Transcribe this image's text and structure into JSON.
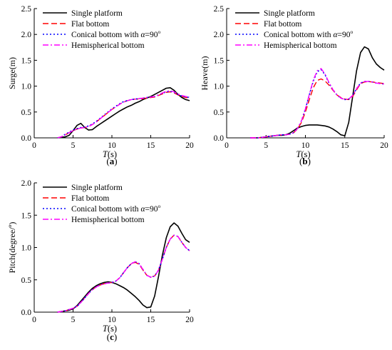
{
  "figure": {
    "legend_labels": [
      "Single platform",
      "Flat bottom",
      "Conical bottom with α=90°",
      "Hemispherical bottom"
    ],
    "series_colors": [
      "#000000",
      "#ff0000",
      "#0000ff",
      "#ff00ff"
    ],
    "series_dashes": [
      "solid",
      "dashed",
      "dotted",
      "dash-dot"
    ]
  },
  "chart_data": [
    {
      "id": "a",
      "type": "line",
      "caption": "(a)",
      "xlabel": "T(s)",
      "ylabel": "Surge(m)",
      "xlim": [
        0,
        20
      ],
      "ylim": [
        0,
        2.5
      ],
      "xticks": [
        0,
        5,
        10,
        15,
        20
      ],
      "yticks": [
        0.0,
        0.5,
        1.0,
        1.5,
        2.0,
        2.5
      ],
      "legend_position": "top-left",
      "x": [
        3,
        3.5,
        4,
        4.5,
        5,
        5.5,
        6,
        6.5,
        7,
        7.5,
        8,
        8.5,
        9,
        9.5,
        10,
        10.5,
        11,
        11.5,
        12,
        12.5,
        13,
        13.5,
        14,
        14.5,
        15,
        15.5,
        16,
        16.5,
        17,
        17.5,
        18,
        18.5,
        19,
        19.5,
        20
      ],
      "series": [
        {
          "name": "Single platform",
          "values": [
            0.0,
            0.01,
            0.02,
            0.05,
            0.14,
            0.24,
            0.28,
            0.2,
            0.15,
            0.16,
            0.22,
            0.27,
            0.32,
            0.37,
            0.42,
            0.47,
            0.52,
            0.56,
            0.6,
            0.63,
            0.67,
            0.7,
            0.74,
            0.77,
            0.8,
            0.84,
            0.88,
            0.92,
            0.96,
            0.97,
            0.92,
            0.84,
            0.78,
            0.74,
            0.72
          ]
        },
        {
          "name": "Flat bottom",
          "values": [
            0.0,
            0.02,
            0.06,
            0.1,
            0.14,
            0.17,
            0.19,
            0.2,
            0.22,
            0.26,
            0.31,
            0.37,
            0.43,
            0.49,
            0.55,
            0.6,
            0.65,
            0.69,
            0.72,
            0.74,
            0.75,
            0.75,
            0.76,
            0.77,
            0.78,
            0.79,
            0.82,
            0.85,
            0.88,
            0.89,
            0.87,
            0.83,
            0.8,
            0.78,
            0.77
          ]
        },
        {
          "name": "Conical bottom with α=90°",
          "values": [
            0.0,
            0.02,
            0.07,
            0.11,
            0.15,
            0.18,
            0.2,
            0.21,
            0.23,
            0.27,
            0.32,
            0.38,
            0.44,
            0.5,
            0.56,
            0.61,
            0.66,
            0.7,
            0.72,
            0.74,
            0.75,
            0.76,
            0.77,
            0.78,
            0.79,
            0.8,
            0.83,
            0.86,
            0.89,
            0.9,
            0.88,
            0.84,
            0.81,
            0.79,
            0.78
          ]
        },
        {
          "name": "Hemispherical bottom",
          "values": [
            0.0,
            0.02,
            0.06,
            0.1,
            0.14,
            0.17,
            0.19,
            0.2,
            0.22,
            0.26,
            0.31,
            0.37,
            0.43,
            0.49,
            0.55,
            0.6,
            0.65,
            0.69,
            0.72,
            0.74,
            0.75,
            0.76,
            0.77,
            0.78,
            0.79,
            0.8,
            0.83,
            0.87,
            0.9,
            0.91,
            0.89,
            0.85,
            0.82,
            0.8,
            0.79
          ]
        }
      ]
    },
    {
      "id": "b",
      "type": "line",
      "caption": "(b)",
      "xlabel": "T(s)",
      "ylabel": "Heave(m)",
      "xlim": [
        0,
        20
      ],
      "ylim": [
        0,
        2.5
      ],
      "xticks": [
        0,
        5,
        10,
        15,
        20
      ],
      "yticks": [
        0.0,
        0.5,
        1.0,
        1.5,
        2.0,
        2.5
      ],
      "legend_position": "top-right",
      "x": [
        3,
        3.5,
        4,
        4.5,
        5,
        5.5,
        6,
        6.5,
        7,
        7.5,
        8,
        8.5,
        9,
        9.5,
        10,
        10.5,
        11,
        11.5,
        12,
        12.5,
        13,
        13.5,
        14,
        14.5,
        15,
        15.5,
        16,
        16.5,
        17,
        17.5,
        18,
        18.5,
        19,
        19.5,
        20
      ],
      "series": [
        {
          "name": "Single platform",
          "values": [
            0.0,
            0.0,
            0.0,
            0.01,
            0.02,
            0.03,
            0.04,
            0.05,
            0.05,
            0.06,
            0.09,
            0.14,
            0.19,
            0.22,
            0.24,
            0.25,
            0.25,
            0.25,
            0.24,
            0.23,
            0.21,
            0.17,
            0.12,
            0.06,
            0.04,
            0.3,
            0.8,
            1.3,
            1.65,
            1.76,
            1.72,
            1.55,
            1.43,
            1.36,
            1.31
          ]
        },
        {
          "name": "Flat bottom",
          "values": [
            0.0,
            0.0,
            0.0,
            0.01,
            0.02,
            0.03,
            0.04,
            0.05,
            0.06,
            0.06,
            0.07,
            0.1,
            0.17,
            0.3,
            0.5,
            0.74,
            0.97,
            1.11,
            1.14,
            1.1,
            1.02,
            0.92,
            0.83,
            0.78,
            0.75,
            0.74,
            0.8,
            0.93,
            1.05,
            1.08,
            1.09,
            1.08,
            1.07,
            1.06,
            1.05
          ]
        },
        {
          "name": "Conical bottom with α=90°",
          "values": [
            0.0,
            0.0,
            0.0,
            0.01,
            0.02,
            0.03,
            0.04,
            0.05,
            0.06,
            0.06,
            0.07,
            0.1,
            0.18,
            0.33,
            0.56,
            0.83,
            1.1,
            1.28,
            1.32,
            1.22,
            1.06,
            0.93,
            0.83,
            0.77,
            0.74,
            0.75,
            0.82,
            0.95,
            1.06,
            1.09,
            1.09,
            1.08,
            1.06,
            1.05,
            1.04
          ]
        },
        {
          "name": "Hemispherical bottom",
          "values": [
            0.0,
            0.0,
            0.0,
            0.01,
            0.02,
            0.03,
            0.04,
            0.05,
            0.06,
            0.06,
            0.07,
            0.1,
            0.18,
            0.33,
            0.56,
            0.84,
            1.12,
            1.3,
            1.34,
            1.23,
            1.07,
            0.93,
            0.83,
            0.77,
            0.74,
            0.75,
            0.82,
            0.95,
            1.06,
            1.09,
            1.09,
            1.08,
            1.06,
            1.05,
            1.04
          ]
        }
      ]
    },
    {
      "id": "c",
      "type": "line",
      "caption": "(c)",
      "xlabel": "T(s)",
      "ylabel": "Pitch(degree/°)",
      "xlim": [
        0,
        20
      ],
      "ylim": [
        0,
        2.0
      ],
      "xticks": [
        0,
        5,
        10,
        15,
        20
      ],
      "yticks": [
        0.0,
        0.5,
        1.0,
        1.5,
        2.0
      ],
      "legend_position": "top-left",
      "x": [
        3,
        3.5,
        4,
        4.5,
        5,
        5.5,
        6,
        6.5,
        7,
        7.5,
        8,
        8.5,
        9,
        9.5,
        10,
        10.5,
        11,
        11.5,
        12,
        12.5,
        13,
        13.5,
        14,
        14.5,
        15,
        15.5,
        16,
        16.5,
        17,
        17.5,
        18,
        18.5,
        19,
        19.5,
        20
      ],
      "series": [
        {
          "name": "Single platform",
          "values": [
            0.0,
            0.01,
            0.02,
            0.03,
            0.05,
            0.1,
            0.17,
            0.24,
            0.31,
            0.37,
            0.41,
            0.44,
            0.46,
            0.47,
            0.46,
            0.44,
            0.41,
            0.38,
            0.34,
            0.29,
            0.24,
            0.18,
            0.11,
            0.07,
            0.08,
            0.25,
            0.55,
            0.88,
            1.15,
            1.32,
            1.38,
            1.33,
            1.22,
            1.12,
            1.08
          ]
        },
        {
          "name": "Flat bottom",
          "values": [
            0.0,
            0.01,
            0.02,
            0.04,
            0.06,
            0.09,
            0.15,
            0.22,
            0.29,
            0.35,
            0.39,
            0.42,
            0.44,
            0.45,
            0.46,
            0.48,
            0.53,
            0.61,
            0.69,
            0.75,
            0.77,
            0.74,
            0.65,
            0.57,
            0.54,
            0.56,
            0.65,
            0.82,
            1.0,
            1.13,
            1.19,
            1.17,
            1.08,
            1.0,
            0.95
          ]
        },
        {
          "name": "Conical bottom with α=90°",
          "values": [
            0.0,
            0.01,
            0.02,
            0.04,
            0.06,
            0.09,
            0.15,
            0.22,
            0.29,
            0.35,
            0.39,
            0.42,
            0.44,
            0.45,
            0.46,
            0.48,
            0.53,
            0.61,
            0.69,
            0.75,
            0.78,
            0.75,
            0.66,
            0.57,
            0.54,
            0.56,
            0.65,
            0.82,
            1.0,
            1.13,
            1.19,
            1.17,
            1.08,
            1.0,
            0.95
          ]
        },
        {
          "name": "Hemispherical bottom",
          "values": [
            0.0,
            0.01,
            0.02,
            0.04,
            0.06,
            0.09,
            0.15,
            0.22,
            0.29,
            0.35,
            0.39,
            0.42,
            0.44,
            0.45,
            0.46,
            0.48,
            0.53,
            0.61,
            0.69,
            0.75,
            0.78,
            0.75,
            0.66,
            0.57,
            0.54,
            0.56,
            0.65,
            0.82,
            1.0,
            1.13,
            1.19,
            1.17,
            1.08,
            1.0,
            0.95
          ]
        }
      ]
    }
  ]
}
